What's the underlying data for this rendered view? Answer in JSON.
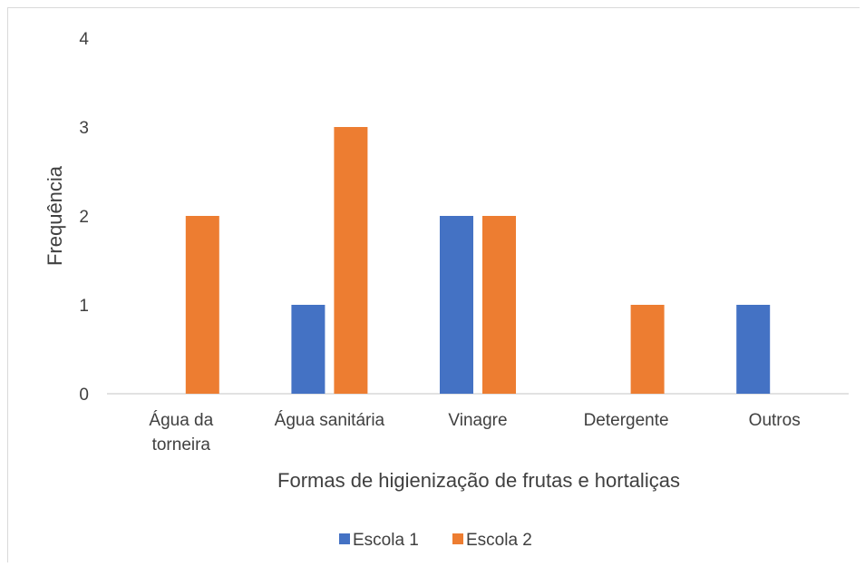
{
  "chart_data": {
    "type": "bar",
    "categories": [
      [
        "Água da",
        "torneira"
      ],
      [
        "Água sanitária"
      ],
      [
        "Vinagre"
      ],
      [
        "Detergente"
      ],
      [
        "Outros"
      ]
    ],
    "series": [
      {
        "name": "Escola 1",
        "color": "#4472c4",
        "values": [
          0,
          1,
          2,
          0,
          1
        ]
      },
      {
        "name": "Escola 2",
        "color": "#ed7d31",
        "values": [
          2,
          3,
          2,
          1,
          0
        ]
      }
    ],
    "title": "",
    "xlabel": "Formas de higienização de frutas e hortaliças",
    "ylabel": "Frequência",
    "ylim": [
      0,
      4
    ],
    "yticks": [
      "0",
      "1",
      "2",
      "3",
      "4"
    ],
    "grid": false,
    "legend_position": "bottom"
  }
}
